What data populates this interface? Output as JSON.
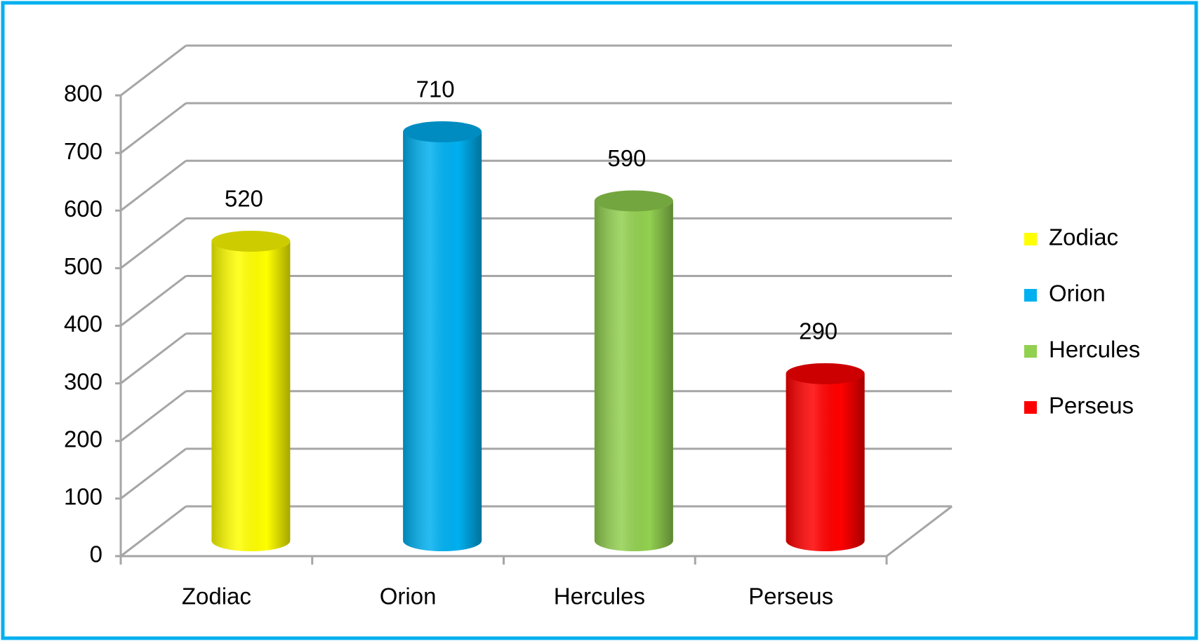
{
  "chart_data": {
    "type": "bar3d",
    "categories": [
      "Zodiac",
      "Orion",
      "Hercules",
      "Perseus"
    ],
    "values": [
      520,
      710,
      590,
      290
    ],
    "colors": [
      "#ffff00",
      "#00b0f0",
      "#92d050",
      "#ff0000"
    ],
    "ylim": [
      0,
      800
    ],
    "yticks": [
      0,
      100,
      200,
      300,
      400,
      500,
      600,
      700,
      800
    ],
    "grid": true,
    "legend": "right"
  }
}
